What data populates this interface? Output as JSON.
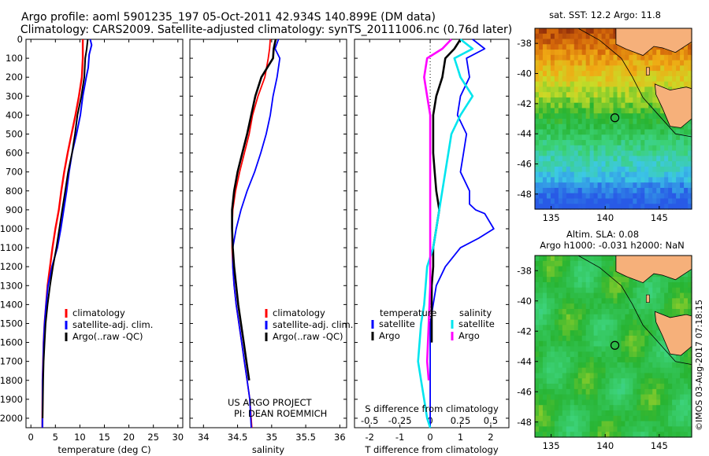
{
  "header": {
    "title_line1": "Argo profile: aoml 5901235_197 05-Oct-2011 42.934S 140.899E (DM data)",
    "title_line2": "Climatology: CARS2009. Satellite-adjusted climatology: synTS_20111006.nc (0.76d later)"
  },
  "colors": {
    "climatology": "#ff0000",
    "satellite": "#0000ff",
    "argo": "#000000",
    "sal_satellite": "#00e5ee",
    "sal_argo": "#ff00ff",
    "land": "#f6b07a",
    "circle": "#000000"
  },
  "chart_data": [
    {
      "id": "temperature",
      "type": "line",
      "xlabel": "temperature (deg C)",
      "ylabel": "",
      "xlim": [
        -1,
        31
      ],
      "ylim": [
        2050,
        0
      ],
      "xticks": [
        0,
        5,
        10,
        15,
        20,
        25,
        30
      ],
      "yticks": [
        0,
        100,
        200,
        300,
        400,
        500,
        600,
        700,
        800,
        900,
        1000,
        1100,
        1200,
        1300,
        1400,
        1500,
        1600,
        1700,
        1800,
        1900,
        2000
      ],
      "legend": [
        "climatology",
        "satellite-adj. clim.",
        "Argo(..raw -QC)"
      ],
      "series": [
        {
          "name": "climatology",
          "color_key": "climatology",
          "x": [
            10.6,
            10.6,
            10.6,
            10.5,
            10.4,
            9.8,
            9.1,
            8.3,
            7.5,
            6.8,
            6.2,
            5.7,
            5.0,
            4.4,
            3.9,
            3.4,
            3.1,
            2.8,
            2.6,
            2.5,
            2.4,
            2.35
          ],
          "y": [
            0,
            50,
            100,
            150,
            200,
            300,
            400,
            500,
            600,
            700,
            800,
            900,
            1000,
            1100,
            1200,
            1300,
            1400,
            1500,
            1600,
            1700,
            1800,
            2050
          ]
        },
        {
          "name": "satellite-adj. clim.",
          "color_key": "satellite",
          "x": [
            12.1,
            12.4,
            11.9,
            11.7,
            11.3,
            10.6,
            10.1,
            9.3,
            8.4,
            7.8,
            7.3,
            6.7,
            6.1,
            5.4,
            4.3,
            3.5,
            3.1,
            2.8,
            2.6,
            2.5,
            2.4,
            2.35
          ],
          "y": [
            0,
            30,
            80,
            150,
            200,
            300,
            400,
            500,
            600,
            700,
            800,
            900,
            1000,
            1100,
            1200,
            1300,
            1400,
            1500,
            1600,
            1700,
            1800,
            2050
          ]
        },
        {
          "name": "Argo(..raw -QC)",
          "color_key": "argo",
          "x": [
            11.6,
            11.4,
            11.1,
            10.9,
            10.3,
            9.5,
            9.0,
            8.4,
            7.6,
            7.0,
            6.4,
            5.8,
            5.2,
            4.5,
            3.9,
            3.4,
            3.0,
            2.8,
            2.6,
            2.5,
            2.4
          ],
          "y": [
            0,
            50,
            100,
            200,
            300,
            400,
            500,
            600,
            700,
            800,
            900,
            1000,
            1100,
            1200,
            1300,
            1400,
            1500,
            1600,
            1700,
            1800,
            2000
          ]
        }
      ]
    },
    {
      "id": "salinity",
      "type": "line",
      "xlabel": "salinity",
      "ylabel": "",
      "xlim": [
        33.8,
        36.1
      ],
      "ylim": [
        2050,
        0
      ],
      "xticks": [
        34,
        34.5,
        35,
        35.5,
        36
      ],
      "xticklabels": [
        "34",
        "34.5",
        "35",
        "35.5",
        "36"
      ],
      "legend": [
        "climatology",
        "satellite-adj. clim.",
        "Argo(..raw -QC)"
      ],
      "annotation": [
        "US ARGO PROJECT",
        "PI: DEAN ROEMMICH"
      ],
      "series": [
        {
          "name": "climatology",
          "color_key": "climatology",
          "x": [
            34.98,
            34.97,
            34.95,
            34.9,
            34.8,
            34.72,
            34.67,
            34.6,
            34.53,
            34.47,
            34.43,
            34.42,
            34.42,
            34.43,
            34.45,
            34.48,
            34.52,
            34.56,
            34.6,
            34.64,
            34.68,
            34.71
          ],
          "y": [
            0,
            50,
            100,
            200,
            300,
            400,
            500,
            600,
            700,
            800,
            900,
            1000,
            1100,
            1200,
            1300,
            1400,
            1500,
            1600,
            1700,
            1800,
            1900,
            2050
          ]
        },
        {
          "name": "satellite-adj. clim.",
          "color_key": "satellite",
          "x": [
            35.1,
            35.05,
            35.12,
            35.08,
            35.02,
            34.98,
            34.92,
            34.84,
            34.75,
            34.64,
            34.55,
            34.48,
            34.43,
            34.43,
            34.45,
            34.48,
            34.52,
            34.56,
            34.6,
            34.64,
            34.68,
            34.7
          ],
          "y": [
            0,
            50,
            100,
            200,
            300,
            400,
            500,
            600,
            700,
            800,
            900,
            1000,
            1100,
            1200,
            1300,
            1400,
            1500,
            1600,
            1700,
            1800,
            1900,
            2050
          ]
        },
        {
          "name": "Argo(..raw -QC)",
          "color_key": "argo",
          "x": [
            35.06,
            35.03,
            35.02,
            34.85,
            34.76,
            34.7,
            34.64,
            34.57,
            34.5,
            34.45,
            34.42,
            34.42,
            34.43,
            34.45,
            34.48,
            34.51,
            34.55,
            34.59,
            34.63,
            34.67
          ],
          "y": [
            0,
            50,
            100,
            200,
            300,
            400,
            500,
            600,
            700,
            800,
            900,
            1000,
            1100,
            1200,
            1300,
            1400,
            1500,
            1600,
            1700,
            1800
          ]
        }
      ]
    },
    {
      "id": "difference",
      "type": "line",
      "xlabel": "T difference from climatology",
      "xlabel_top": "S difference from climatology",
      "xlim": [
        -2.5,
        2.6
      ],
      "ylim": [
        2050,
        0
      ],
      "xticks_T": [
        -2,
        -1,
        0,
        1,
        2
      ],
      "xticks_S": [
        -0.5,
        -0.25,
        0,
        0.25,
        0.5
      ],
      "xticklabels_S": [
        "-0.5",
        "-0.25",
        "0",
        "0.25",
        "0.5"
      ],
      "legend_temperature": {
        "title": "temperature",
        "items": [
          "satellite",
          "Argo"
        ]
      },
      "legend_salinity": {
        "title": "salinity",
        "items": [
          "satellite",
          "Argo"
        ]
      },
      "series": [
        {
          "name": "T satellite",
          "color_key": "satellite",
          "x": [
            1.4,
            1.8,
            1.2,
            1.3,
            1.0,
            0.9,
            1.2,
            1.1,
            1.0,
            1.3,
            1.3,
            1.5,
            1.8,
            2.1,
            1.6,
            1.0,
            0.5,
            0.2,
            0.1,
            0.0,
            0.0,
            0.0
          ],
          "y": [
            0,
            50,
            100,
            200,
            300,
            400,
            500,
            600,
            700,
            800,
            870,
            900,
            920,
            1000,
            1050,
            1100,
            1200,
            1300,
            1400,
            1500,
            1700,
            2050
          ]
        },
        {
          "name": "T Argo",
          "color_key": "argo",
          "x": [
            1.0,
            0.8,
            0.5,
            0.4,
            0.2,
            0.1,
            0.1,
            0.1,
            0.15,
            0.2,
            0.3,
            0.2,
            0.1,
            0.1,
            0.05,
            0.05,
            0.05
          ],
          "y": [
            0,
            50,
            100,
            200,
            300,
            400,
            500,
            600,
            700,
            800,
            900,
            1000,
            1100,
            1200,
            1300,
            1500,
            1600
          ]
        },
        {
          "name": "S satellite",
          "color_key": "sal_satellite",
          "x": [
            1.0,
            1.4,
            0.8,
            0.9,
            1.0,
            1.4,
            1.0,
            0.7,
            0.5,
            0.3,
            0.2,
            0.1,
            -0.1,
            -0.2,
            -0.3,
            -0.4,
            -0.3,
            -0.2,
            -0.1,
            0.0
          ],
          "y": [
            0,
            50,
            100,
            150,
            200,
            300,
            400,
            500,
            700,
            900,
            1000,
            1100,
            1200,
            1400,
            1500,
            1700,
            1800,
            1900,
            2000,
            2050
          ]
        },
        {
          "name": "S Argo",
          "color_key": "sal_argo",
          "x": [
            0.7,
            0.4,
            -0.1,
            -0.2,
            -0.1,
            0.0,
            0.0,
            0.0,
            0.0,
            0.0,
            0.0,
            -0.05,
            -0.1,
            -0.05
          ],
          "y": [
            0,
            50,
            100,
            200,
            300,
            400,
            500,
            700,
            900,
            1100,
            1300,
            1500,
            1700,
            1800
          ]
        }
      ]
    },
    {
      "id": "sst_map",
      "type": "heatmap",
      "title": "sat. SST: 12.2  Argo: 11.8",
      "xlim": [
        133.5,
        148
      ],
      "ylim": [
        -49,
        -37
      ],
      "xticks": [
        135,
        140,
        145
      ],
      "yticks": [
        -38,
        -40,
        -42,
        -44,
        -46,
        -48
      ],
      "argo_position": [
        140.899,
        -42.934
      ]
    },
    {
      "id": "sla_map",
      "type": "heatmap",
      "title_line1": "Altim. SLA: 0.08",
      "title_line2": "Argo h1000: -0.031  h2000: NaN",
      "xlim": [
        133.5,
        148
      ],
      "ylim": [
        -49,
        -37
      ],
      "xticks": [
        135,
        140,
        145
      ],
      "yticks": [
        -38,
        -40,
        -42,
        -44,
        -46,
        -48
      ],
      "argo_position": [
        140.899,
        -42.934
      ],
      "credit": "©IMOS 03-Aug-2017 07:18:15"
    }
  ]
}
